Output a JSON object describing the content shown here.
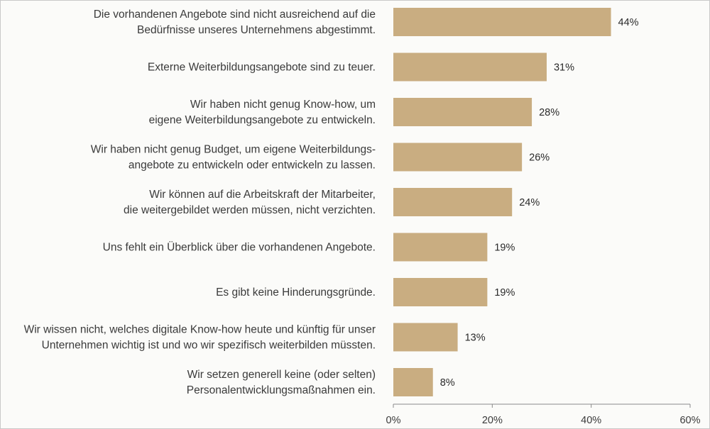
{
  "chart_data": {
    "type": "bar",
    "orientation": "horizontal",
    "categories": [
      [
        "Die vorhandenen Angebote sind nicht ausreichend auf die",
        "Bedürfnisse unseres Unternehmens abgestimmt."
      ],
      [
        "Externe Weiterbildungsangebote sind zu teuer."
      ],
      [
        "Wir haben nicht genug Know-how, um",
        "eigene Weiterbildungsangebote zu entwickeln."
      ],
      [
        "Wir haben nicht genug Budget, um eigene Weiterbildungs-",
        "angebote zu entwickeln oder entwickeln zu lassen."
      ],
      [
        "Wir können auf die Arbeitskraft der Mitarbeiter,",
        "die weitergebildet werden müssen, nicht verzichten."
      ],
      [
        "Uns fehlt ein Überblick über die vorhandenen Angebote."
      ],
      [
        "Es gibt keine Hinderungsgründe."
      ],
      [
        "Wir wissen nicht, welches digitale Know-how heute und künftig für unser",
        "Unternehmen wichtig ist und wo wir spezifisch weiterbilden müssten."
      ],
      [
        "Wir setzen generell keine (oder selten)",
        "Personalentwicklungsmaßnahmen ein."
      ]
    ],
    "values": [
      44,
      31,
      28,
      26,
      24,
      19,
      19,
      13,
      8
    ],
    "value_labels": [
      "44%",
      "31%",
      "28%",
      "26%",
      "24%",
      "19%",
      "19%",
      "13%",
      "8%"
    ],
    "xlim": [
      0,
      60
    ],
    "x_ticks": [
      0,
      20,
      40,
      60
    ],
    "x_tick_labels": [
      "0%",
      "20%",
      "40%",
      "60%"
    ],
    "bar_color": "#c9ad81",
    "axis_color": "#8a8a8a",
    "title": "",
    "xlabel": "",
    "ylabel": ""
  }
}
